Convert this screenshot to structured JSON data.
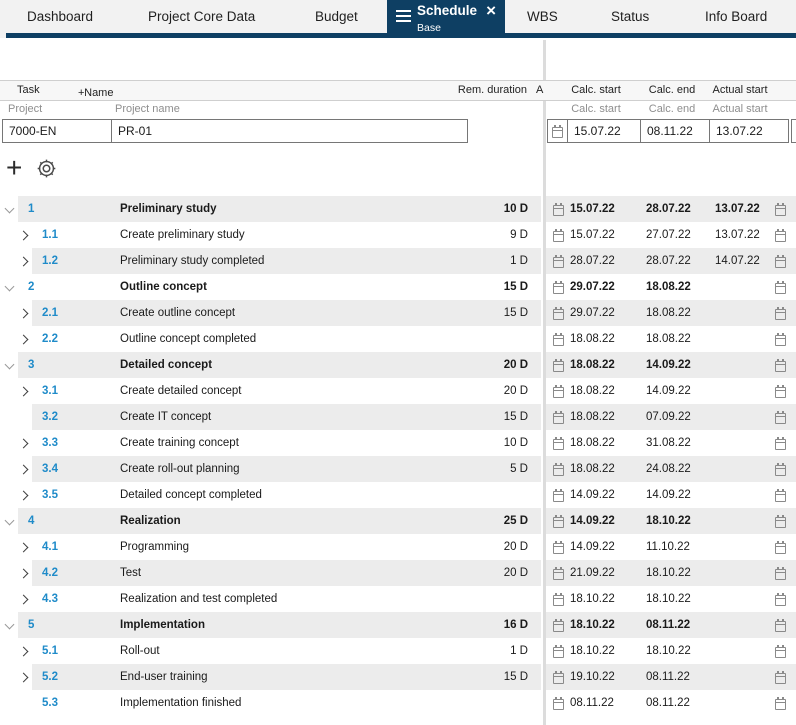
{
  "tabs": {
    "items": [
      {
        "label": "Dashboard"
      },
      {
        "label": "Project Core Data"
      },
      {
        "label": "Budget"
      },
      {
        "label": "Schedule",
        "sublabel": "Base",
        "active": true
      },
      {
        "label": "WBS"
      },
      {
        "label": "Status"
      },
      {
        "label": "Info Board"
      }
    ]
  },
  "colors": {
    "accent_navy": "#0e3f63",
    "task_number_blue": "#1f8bc9",
    "zebra_gray": "#ececec"
  },
  "header": {
    "task": "Task",
    "name_plus": "+",
    "name": "Name",
    "rem_duration": "Rem. duration",
    "a": "A",
    "calc_start": "Calc. start",
    "calc_end": "Calc. end",
    "actual_start": "Actual start"
  },
  "subheader": {
    "project": "Project",
    "project_name": "Project name",
    "calc_start": "Calc. start",
    "calc_end": "Calc. end",
    "actual_start": "Actual start"
  },
  "project_row": {
    "id": "7000-EN",
    "name": "PR-01",
    "calc_start": "15.07.22",
    "calc_end": "08.11.22",
    "actual_start": "13.07.22"
  },
  "toolbar": {
    "icons": [
      "add-icon",
      "settings-icon"
    ]
  },
  "rows": [
    {
      "number": "1",
      "name": "Preliminary study",
      "duration": "10 D",
      "calc_start": "15.07.22",
      "calc_end": "28.07.22",
      "actual_start": "13.07.22",
      "level": 1,
      "chevron": "down"
    },
    {
      "number": "1.1",
      "name": "Create preliminary study",
      "duration": "9 D",
      "calc_start": "15.07.22",
      "calc_end": "27.07.22",
      "actual_start": "13.07.22",
      "level": 2,
      "chevron": "right"
    },
    {
      "number": "1.2",
      "name": "Preliminary study completed",
      "duration": "1 D",
      "calc_start": "28.07.22",
      "calc_end": "28.07.22",
      "actual_start": "14.07.22",
      "level": 2,
      "chevron": "right"
    },
    {
      "number": "2",
      "name": "Outline concept",
      "duration": "15 D",
      "calc_start": "29.07.22",
      "calc_end": "18.08.22",
      "actual_start": "",
      "level": 1,
      "chevron": "down"
    },
    {
      "number": "2.1",
      "name": "Create outline concept",
      "duration": "15 D",
      "calc_start": "29.07.22",
      "calc_end": "18.08.22",
      "actual_start": "",
      "level": 2,
      "chevron": "right"
    },
    {
      "number": "2.2",
      "name": "Outline concept completed",
      "duration": "",
      "calc_start": "18.08.22",
      "calc_end": "18.08.22",
      "actual_start": "",
      "level": 2,
      "chevron": "right"
    },
    {
      "number": "3",
      "name": "Detailed concept",
      "duration": "20 D",
      "calc_start": "18.08.22",
      "calc_end": "14.09.22",
      "actual_start": "",
      "level": 1,
      "chevron": "down"
    },
    {
      "number": "3.1",
      "name": "Create detailed concept",
      "duration": "20 D",
      "calc_start": "18.08.22",
      "calc_end": "14.09.22",
      "actual_start": "",
      "level": 2,
      "chevron": "right"
    },
    {
      "number": "3.2",
      "name": "Create IT concept",
      "duration": "15 D",
      "calc_start": "18.08.22",
      "calc_end": "07.09.22",
      "actual_start": "",
      "level": 2,
      "chevron": "none"
    },
    {
      "number": "3.3",
      "name": "Create training concept",
      "duration": "10 D",
      "calc_start": "18.08.22",
      "calc_end": "31.08.22",
      "actual_start": "",
      "level": 2,
      "chevron": "right"
    },
    {
      "number": "3.4",
      "name": "Create roll-out planning",
      "duration": "5 D",
      "calc_start": "18.08.22",
      "calc_end": "24.08.22",
      "actual_start": "",
      "level": 2,
      "chevron": "right"
    },
    {
      "number": "3.5",
      "name": "Detailed concept completed",
      "duration": "",
      "calc_start": "14.09.22",
      "calc_end": "14.09.22",
      "actual_start": "",
      "level": 2,
      "chevron": "right"
    },
    {
      "number": "4",
      "name": "Realization",
      "duration": "25 D",
      "calc_start": "14.09.22",
      "calc_end": "18.10.22",
      "actual_start": "",
      "level": 1,
      "chevron": "down"
    },
    {
      "number": "4.1",
      "name": "Programming",
      "duration": "20 D",
      "calc_start": "14.09.22",
      "calc_end": "11.10.22",
      "actual_start": "",
      "level": 2,
      "chevron": "right"
    },
    {
      "number": "4.2",
      "name": "Test",
      "duration": "20 D",
      "calc_start": "21.09.22",
      "calc_end": "18.10.22",
      "actual_start": "",
      "level": 2,
      "chevron": "right"
    },
    {
      "number": "4.3",
      "name": "Realization and test completed",
      "duration": "",
      "calc_start": "18.10.22",
      "calc_end": "18.10.22",
      "actual_start": "",
      "level": 2,
      "chevron": "right"
    },
    {
      "number": "5",
      "name": "Implementation",
      "duration": "16 D",
      "calc_start": "18.10.22",
      "calc_end": "08.11.22",
      "actual_start": "",
      "level": 1,
      "chevron": "down"
    },
    {
      "number": "5.1",
      "name": "Roll-out",
      "duration": "1 D",
      "calc_start": "18.10.22",
      "calc_end": "18.10.22",
      "actual_start": "",
      "level": 2,
      "chevron": "right"
    },
    {
      "number": "5.2",
      "name": "End-user training",
      "duration": "15 D",
      "calc_start": "19.10.22",
      "calc_end": "08.11.22",
      "actual_start": "",
      "level": 2,
      "chevron": "right"
    },
    {
      "number": "5.3",
      "name": "Implementation finished",
      "duration": "",
      "calc_start": "08.11.22",
      "calc_end": "08.11.22",
      "actual_start": "",
      "level": 2,
      "chevron": "none"
    }
  ]
}
